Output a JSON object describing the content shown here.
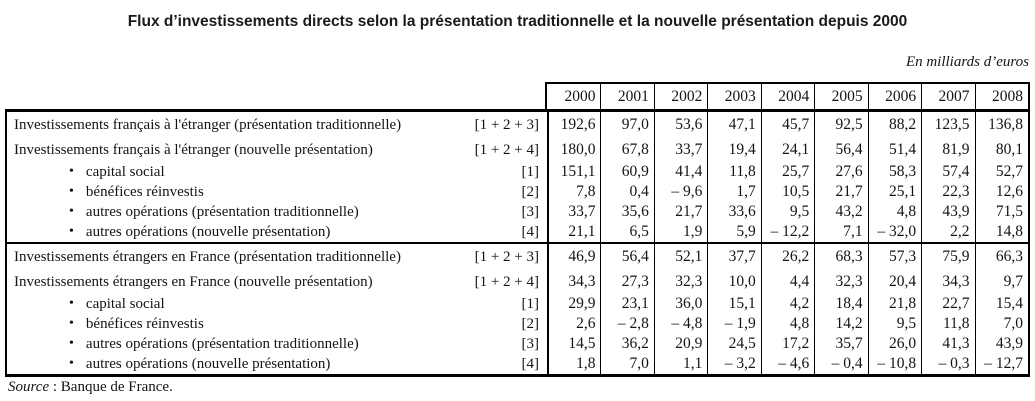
{
  "title": "Flux d’investissements directs selon la présentation traditionnelle et la nouvelle présentation depuis 2000",
  "unit_note": "En milliards d’euros",
  "source": {
    "label": "Source",
    "rest": " : Banque de France."
  },
  "colors": {
    "text": "#141414",
    "border": "#000000",
    "background": "#ffffff"
  },
  "table": {
    "years": [
      "2000",
      "2001",
      "2002",
      "2003",
      "2004",
      "2005",
      "2006",
      "2007",
      "2008"
    ],
    "sections": [
      {
        "rows": [
          {
            "type": "main",
            "label": "Investissements français à l'étranger (présentation traditionnelle)",
            "ref": "[1 + 2 + 3]",
            "values": [
              "192,6",
              "97,0",
              "53,6",
              "47,1",
              "45,7",
              "92,5",
              "88,2",
              "123,5",
              "136,8"
            ]
          },
          {
            "type": "main",
            "label": "Investissements français à l'étranger (nouvelle présentation)",
            "ref": "[1 + 2 + 4]",
            "values": [
              "180,0",
              "67,8",
              "33,7",
              "19,4",
              "24,1",
              "56,4",
              "51,4",
              "81,9",
              "80,1"
            ]
          },
          {
            "type": "bullet",
            "label": "capital social",
            "ref": "[1]",
            "values": [
              "151,1",
              "60,9",
              "41,4",
              "11,8",
              "25,7",
              "27,6",
              "58,3",
              "57,4",
              "52,7"
            ]
          },
          {
            "type": "bullet",
            "label": "bénéfices réinvestis",
            "ref": "[2]",
            "values": [
              "7,8",
              "0,4",
              "– 9,6",
              "1,7",
              "10,5",
              "21,7",
              "25,1",
              "22,3",
              "12,6"
            ]
          },
          {
            "type": "bullet",
            "label": "autres opérations (présentation traditionnelle)",
            "ref": "[3]",
            "values": [
              "33,7",
              "35,6",
              "21,7",
              "33,6",
              "9,5",
              "43,2",
              "4,8",
              "43,9",
              "71,5"
            ]
          },
          {
            "type": "bullet",
            "label": "autres opérations (nouvelle présentation)",
            "ref": "[4]",
            "values": [
              "21,1",
              "6,5",
              "1,9",
              "5,9",
              "– 12,2",
              "7,1",
              "– 32,0",
              "2,2",
              "14,8"
            ]
          }
        ]
      },
      {
        "rows": [
          {
            "type": "main",
            "label": "Investissements étrangers en France (présentation traditionnelle)",
            "ref": "[1 + 2 + 3]",
            "values": [
              "46,9",
              "56,4",
              "52,1",
              "37,7",
              "26,2",
              "68,3",
              "57,3",
              "75,9",
              "66,3"
            ]
          },
          {
            "type": "main",
            "label": "Investissements étrangers en France (nouvelle présentation)",
            "ref": "[1 + 2 + 4]",
            "values": [
              "34,3",
              "27,3",
              "32,3",
              "10,0",
              "4,4",
              "32,3",
              "20,4",
              "34,3",
              "9,7"
            ]
          },
          {
            "type": "bullet",
            "label": "capital social",
            "ref": "[1]",
            "values": [
              "29,9",
              "23,1",
              "36,0",
              "15,1",
              "4,2",
              "18,4",
              "21,8",
              "22,7",
              "15,4"
            ]
          },
          {
            "type": "bullet",
            "label": "bénéfices réinvestis",
            "ref": "[2]",
            "values": [
              "2,6",
              "– 2,8",
              "– 4,8",
              "– 1,9",
              "4,8",
              "14,2",
              "9,5",
              "11,8",
              "7,0"
            ]
          },
          {
            "type": "bullet",
            "label": "autres opérations (présentation traditionnelle)",
            "ref": "[3]",
            "values": [
              "14,5",
              "36,2",
              "20,9",
              "24,5",
              "17,2",
              "35,7",
              "26,0",
              "41,3",
              "43,9"
            ]
          },
          {
            "type": "bullet",
            "label": "autres opérations (nouvelle présentation)",
            "ref": "[4]",
            "values": [
              "1,8",
              "7,0",
              "1,1",
              "– 3,2",
              "– 4,6",
              "– 0,4",
              "– 10,8",
              "– 0,3",
              "– 12,7"
            ]
          }
        ]
      }
    ]
  }
}
